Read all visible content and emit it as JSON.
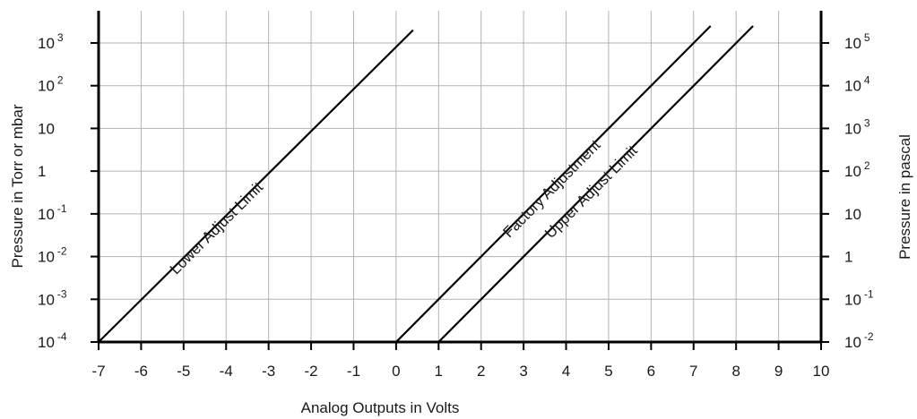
{
  "chart_data": {
    "type": "line",
    "xlabel": "Analog Outputs in Volts",
    "ylabel_left": "Pressure in Torr or mbar",
    "ylabel_right": "Pressure in pascal",
    "xlim": [
      -7,
      10
    ],
    "ylim": [
      -4,
      3
    ],
    "y_scale": "log",
    "grid": true,
    "x_ticks": [
      "-7",
      "-6",
      "-5",
      "-4",
      "-3",
      "-2",
      "-1",
      "0",
      "1",
      "2",
      "3",
      "4",
      "5",
      "6",
      "7",
      "8",
      "9",
      "10"
    ],
    "y_ticks_left": [
      {
        "base": "10",
        "exp": "-4"
      },
      {
        "base": "10",
        "exp": "-3"
      },
      {
        "base": "10",
        "exp": "-2"
      },
      {
        "base": "10",
        "exp": "-1"
      },
      {
        "base": "1",
        "exp": ""
      },
      {
        "base": "10",
        "exp": ""
      },
      {
        "base": "10",
        "exp": "2"
      },
      {
        "base": "10",
        "exp": "3"
      }
    ],
    "y_ticks_right": [
      {
        "base": "10",
        "exp": "-2"
      },
      {
        "base": "10",
        "exp": "-1"
      },
      {
        "base": "1",
        "exp": ""
      },
      {
        "base": "10",
        "exp": ""
      },
      {
        "base": "10",
        "exp": "2"
      },
      {
        "base": "10",
        "exp": "3"
      },
      {
        "base": "10",
        "exp": "4"
      },
      {
        "base": "10",
        "exp": "5"
      }
    ],
    "series": [
      {
        "name": "Lower Adjust Limit",
        "x": [
          -7,
          0.4
        ],
        "y": [
          0.0001,
          2000
        ]
      },
      {
        "name": "Factory Adjustment",
        "x": [
          0,
          7.4
        ],
        "y": [
          0.0001,
          2500
        ]
      },
      {
        "name": "Upper Adjust Limit",
        "x": [
          1,
          8.4
        ],
        "y": [
          0.0001,
          2500
        ]
      }
    ]
  }
}
